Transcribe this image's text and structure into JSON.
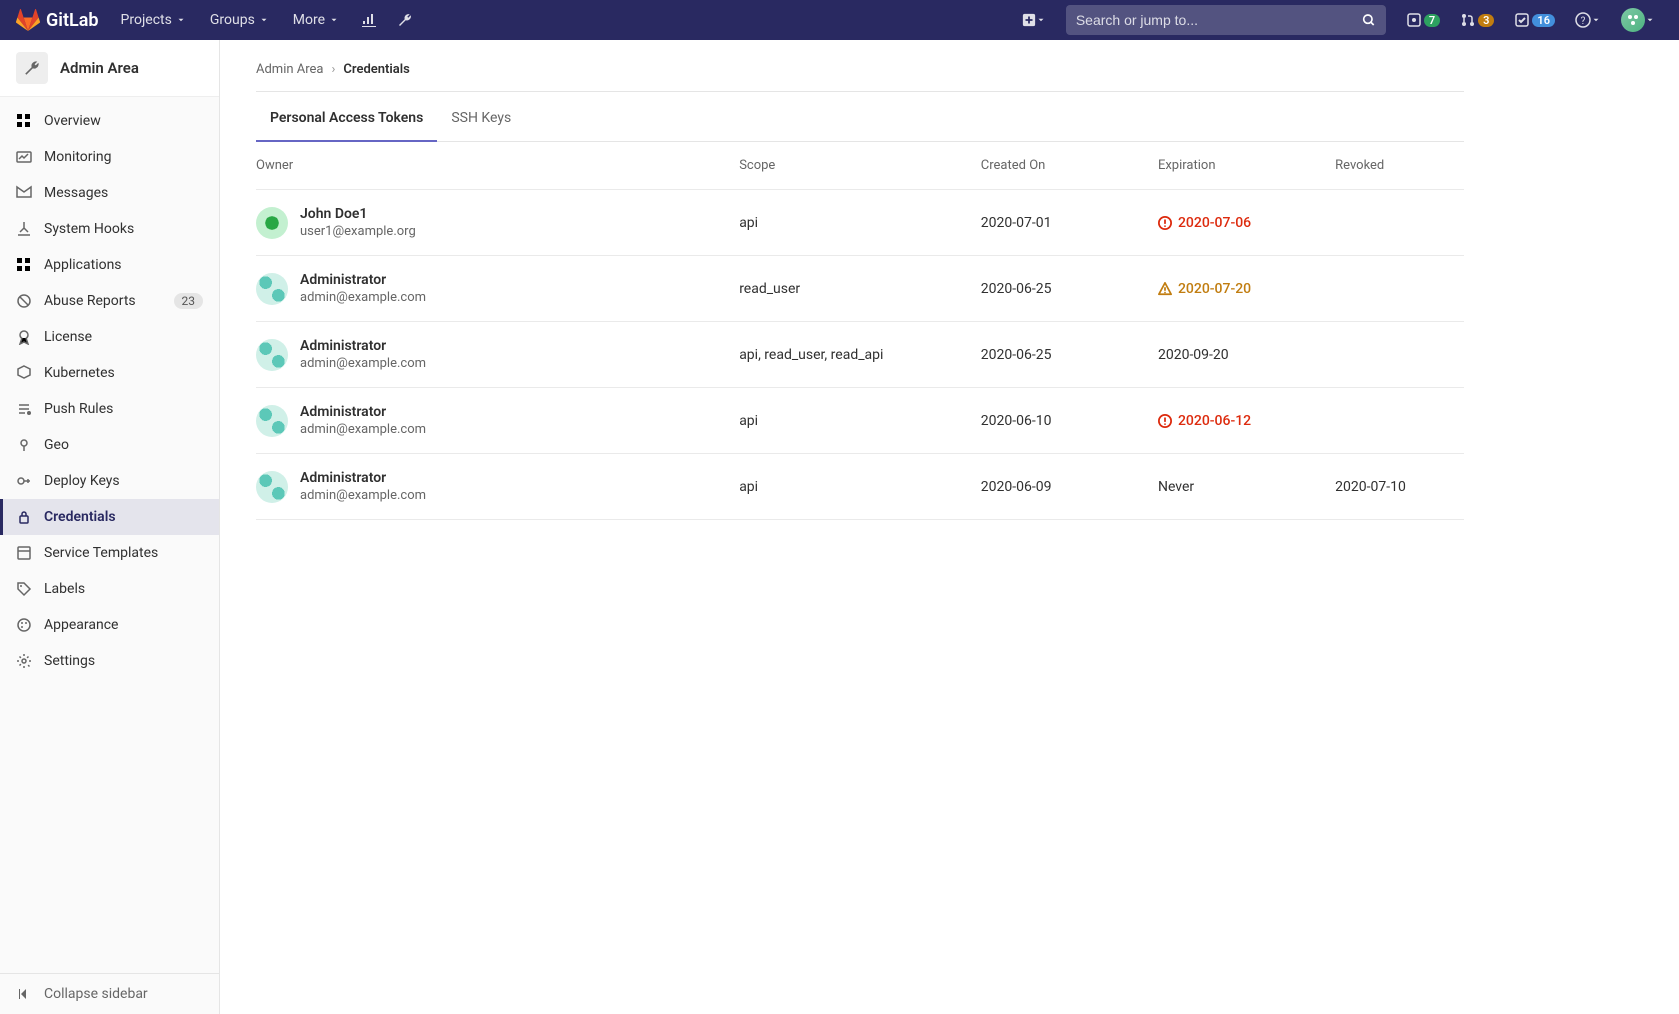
{
  "brand": "GitLab",
  "nav": {
    "projects": "Projects",
    "groups": "Groups",
    "more": "More"
  },
  "search": {
    "placeholder": "Search or jump to..."
  },
  "counters": {
    "issues": "7",
    "mrs": "3",
    "todos": "16"
  },
  "sidebar": {
    "title": "Admin Area",
    "items": [
      {
        "label": "Overview"
      },
      {
        "label": "Monitoring"
      },
      {
        "label": "Messages"
      },
      {
        "label": "System Hooks"
      },
      {
        "label": "Applications"
      },
      {
        "label": "Abuse Reports",
        "badge": "23"
      },
      {
        "label": "License"
      },
      {
        "label": "Kubernetes"
      },
      {
        "label": "Push Rules"
      },
      {
        "label": "Geo"
      },
      {
        "label": "Deploy Keys"
      },
      {
        "label": "Credentials"
      },
      {
        "label": "Service Templates"
      },
      {
        "label": "Labels"
      },
      {
        "label": "Appearance"
      },
      {
        "label": "Settings"
      }
    ],
    "collapse": "Collapse sidebar"
  },
  "breadcrumb": {
    "root": "Admin Area",
    "current": "Credentials"
  },
  "tabs": {
    "pat": "Personal Access Tokens",
    "ssh": "SSH Keys"
  },
  "table": {
    "headers": {
      "owner": "Owner",
      "scope": "Scope",
      "created": "Created On",
      "expiration": "Expiration",
      "revoked": "Revoked"
    },
    "rows": [
      {
        "name": "John Doe1",
        "email": "user1@example.org",
        "avatar": "green",
        "scope": "api",
        "created": "2020-07-01",
        "expiration": "2020-07-06",
        "exp_status": "red",
        "revoked": ""
      },
      {
        "name": "Administrator",
        "email": "admin@example.com",
        "avatar": "teal",
        "scope": "read_user",
        "created": "2020-06-25",
        "expiration": "2020-07-20",
        "exp_status": "orange",
        "revoked": ""
      },
      {
        "name": "Administrator",
        "email": "admin@example.com",
        "avatar": "teal",
        "scope": "api, read_user, read_api",
        "created": "2020-06-25",
        "expiration": "2020-09-20",
        "exp_status": "",
        "revoked": ""
      },
      {
        "name": "Administrator",
        "email": "admin@example.com",
        "avatar": "teal",
        "scope": "api",
        "created": "2020-06-10",
        "expiration": "2020-06-12",
        "exp_status": "red",
        "revoked": ""
      },
      {
        "name": "Administrator",
        "email": "admin@example.com",
        "avatar": "teal",
        "scope": "api",
        "created": "2020-06-09",
        "expiration": "Never",
        "exp_status": "",
        "revoked": "2020-07-10"
      }
    ]
  },
  "colors": {
    "navbar": "#292961",
    "red": "#dd2b0e",
    "orange": "#c17d10"
  }
}
